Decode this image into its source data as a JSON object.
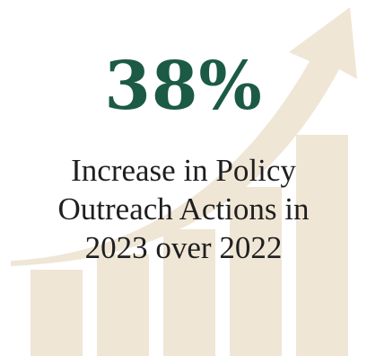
{
  "stat": {
    "value": "38%",
    "caption_lines": [
      "Increase in Policy",
      "Outreach Actions in",
      "2023 over 2022"
    ]
  },
  "graphic": {
    "arrow_icon": "growth-arrow-icon",
    "bars_icon": "rising-bars-icon",
    "bar_count": 5
  },
  "colors": {
    "accent": "#1b5a45",
    "graphic_fill": "#efe6d6",
    "text": "#1f1f1f",
    "background": "#ffffff"
  }
}
